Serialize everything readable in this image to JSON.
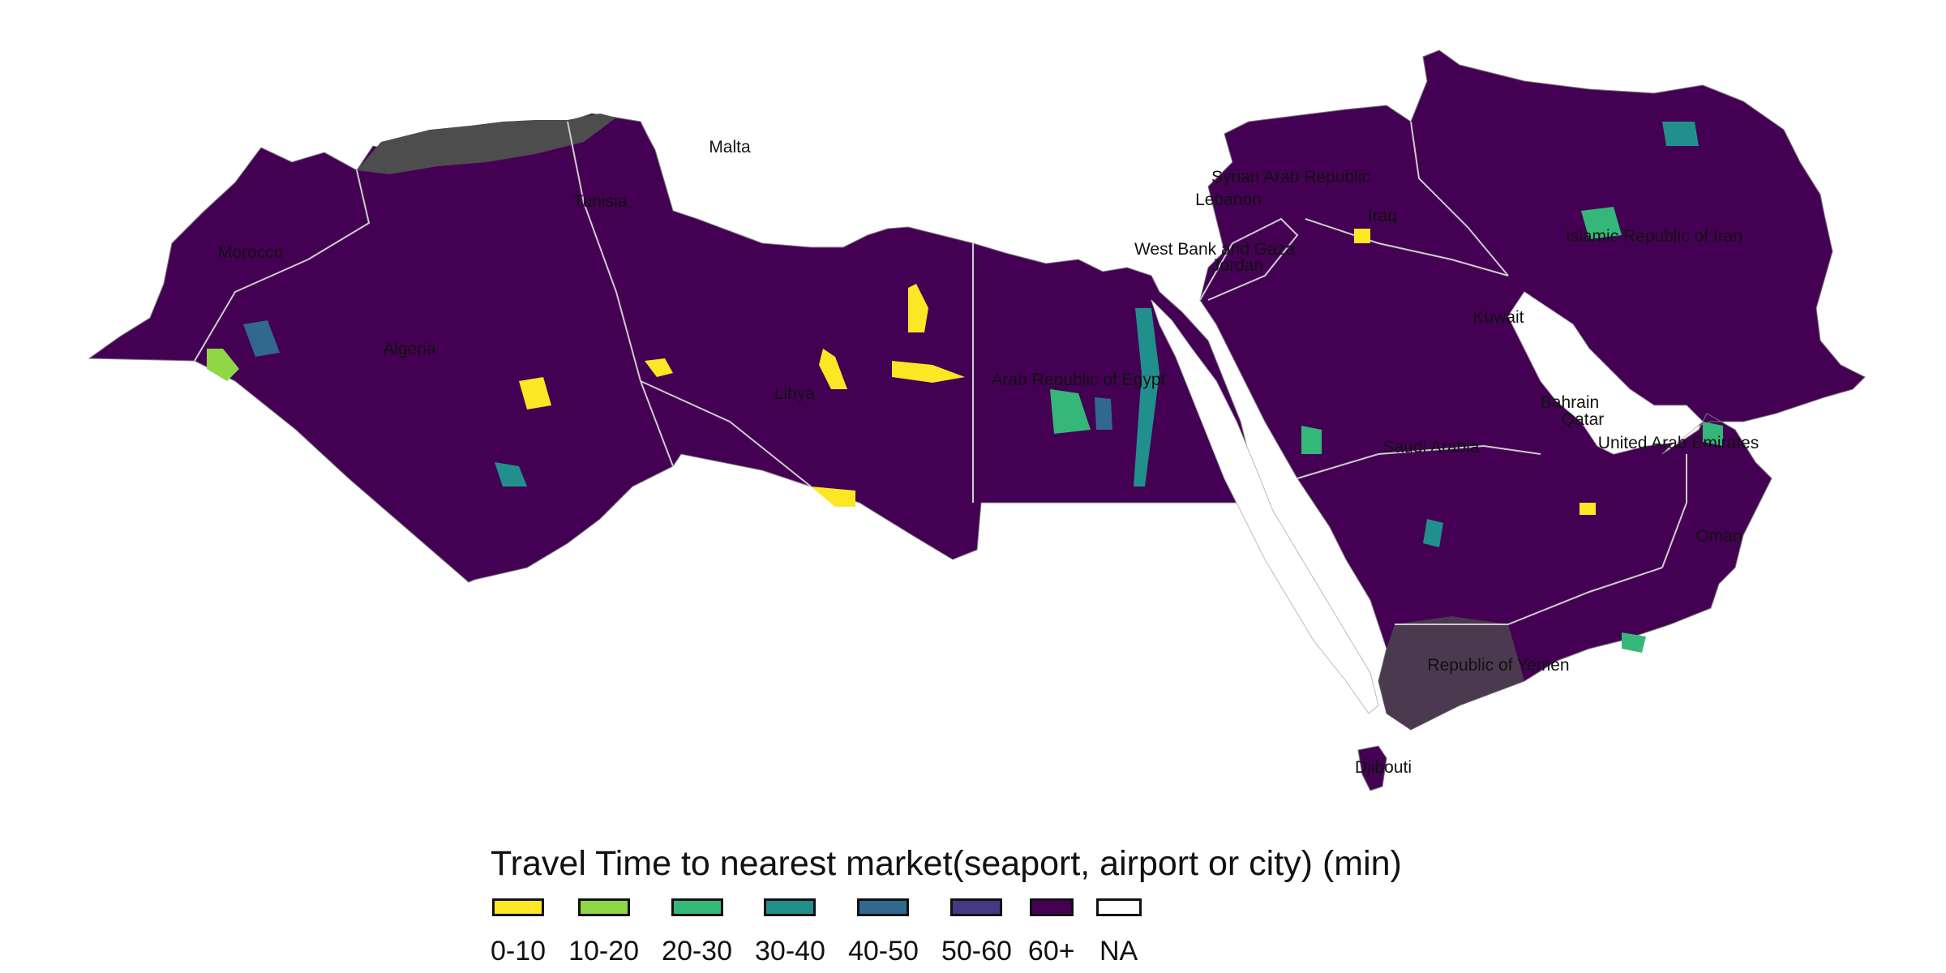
{
  "map": {
    "countries": [
      {
        "id": "morocco",
        "name": "Morocco"
      },
      {
        "id": "algeria",
        "name": "Algeria"
      },
      {
        "id": "tunisia",
        "name": "Tunisia"
      },
      {
        "id": "malta",
        "name": "Malta"
      },
      {
        "id": "libya",
        "name": "Libya"
      },
      {
        "id": "egypt",
        "name": "Arab Republic of Egypt"
      },
      {
        "id": "west-bank-gaza",
        "name": "West Bank and Gaza"
      },
      {
        "id": "lebanon",
        "name": "Lebanon"
      },
      {
        "id": "syria",
        "name": "Syrian Arab Republic"
      },
      {
        "id": "jordan",
        "name": "Jordan"
      },
      {
        "id": "iraq",
        "name": "Iraq"
      },
      {
        "id": "iran",
        "name": "Islamic Republic of Iran"
      },
      {
        "id": "kuwait",
        "name": "Kuwait"
      },
      {
        "id": "bahrain",
        "name": "Bahrain"
      },
      {
        "id": "qatar",
        "name": "Qatar"
      },
      {
        "id": "uae",
        "name": "United Arab Emirates"
      },
      {
        "id": "saudi-arabia",
        "name": "Saudi Arabia"
      },
      {
        "id": "oman",
        "name": "Oman"
      },
      {
        "id": "yemen",
        "name": "Republic of Yemen"
      },
      {
        "id": "djibouti",
        "name": "Djibouti"
      }
    ],
    "colors": {
      "dominant_class": "#440154",
      "missing_data": "#4d4d4d",
      "borders": "#cccccc"
    }
  },
  "legend": {
    "title": "Travel Time to nearest market(seaport, airport or city) (min)",
    "items": [
      {
        "label": "0-10",
        "color": "#FDE725"
      },
      {
        "label": "10-20",
        "color": "#8FD744"
      },
      {
        "label": "20-30",
        "color": "#35B779"
      },
      {
        "label": "30-40",
        "color": "#21908C"
      },
      {
        "label": "40-50",
        "color": "#31688E"
      },
      {
        "label": "50-60",
        "color": "#443A83"
      },
      {
        "label": "60+",
        "color": "#440154"
      },
      {
        "label": "NA",
        "color": "#FFFFFF"
      }
    ]
  }
}
